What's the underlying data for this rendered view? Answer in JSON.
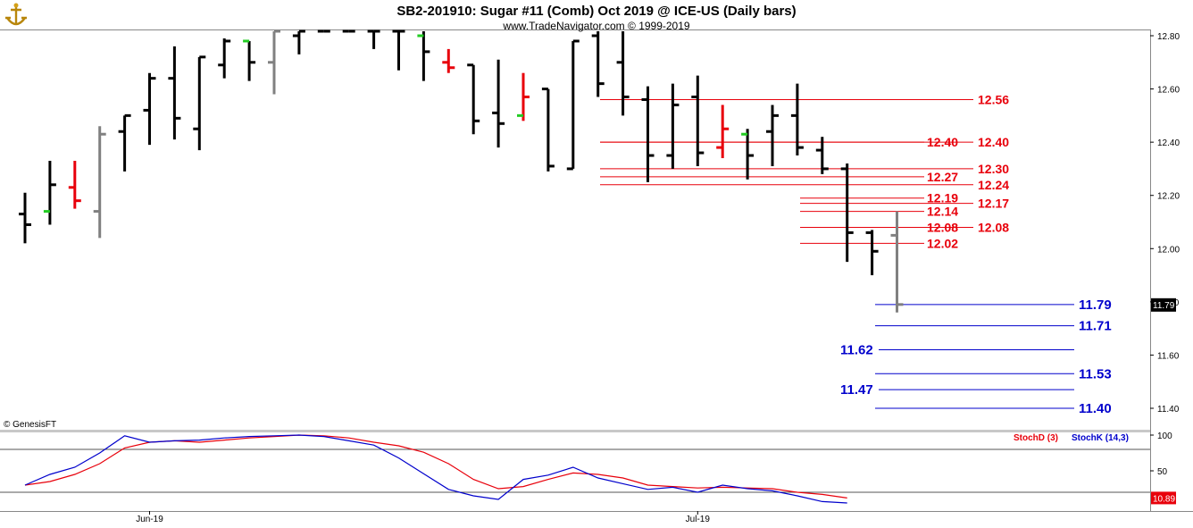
{
  "header": {
    "title": "SB2-201910:  Sugar #11 (Comb) Oct 2019 @ ICE-US  (Daily bars)",
    "subtitle": "www.TradeNavigator.com © 1999-2019",
    "copyright": "© GenesisFT",
    "logo_icon": "ship-anchor-icon"
  },
  "colors": {
    "up": "#000000",
    "down_red": "#e8000b",
    "neutral": "#808080",
    "open_marker": "#22cc22",
    "level_red": "#e8000b",
    "level_blue": "#0000cc",
    "stoch_d": "#e8000b",
    "stoch_k": "#0000cc"
  },
  "chart_data": [
    {
      "type": "ohlc",
      "title": "SB2-201910:  Sugar #11 (Comb) Oct 2019 @ ICE-US  (Daily bars)",
      "ylim": [
        11.35,
        12.82
      ],
      "y_ticks": [
        "12.80",
        "12.60",
        "12.40",
        "12.20",
        "12.00",
        "11.80",
        "11.60",
        "11.40"
      ],
      "y_tick_values": [
        12.8,
        12.6,
        12.4,
        12.2,
        12.0,
        11.8,
        11.6,
        11.4
      ],
      "x_labels": [
        {
          "index": 5,
          "label": "Jun-19"
        },
        {
          "index": 27,
          "label": "Jul-19"
        }
      ],
      "last_price": "11.79",
      "bars": [
        {
          "o": 12.13,
          "h": 12.21,
          "l": 12.02,
          "c": 12.09,
          "color": "black"
        },
        {
          "o": 12.14,
          "h": 12.33,
          "l": 12.09,
          "c": 12.24,
          "color": "black",
          "open_marker": true
        },
        {
          "o": 12.23,
          "h": 12.33,
          "l": 12.15,
          "c": 12.18,
          "color": "red"
        },
        {
          "o": 12.14,
          "h": 12.46,
          "l": 12.04,
          "c": 12.43,
          "color": "gray"
        },
        {
          "o": 12.44,
          "h": 12.5,
          "l": 12.29,
          "c": 12.5,
          "color": "black"
        },
        {
          "o": 12.52,
          "h": 12.66,
          "l": 12.39,
          "c": 12.64,
          "color": "black"
        },
        {
          "o": 12.64,
          "h": 12.76,
          "l": 12.41,
          "c": 12.49,
          "color": "black"
        },
        {
          "o": 12.45,
          "h": 12.72,
          "l": 12.37,
          "c": 12.72,
          "color": "black"
        },
        {
          "o": 12.69,
          "h": 12.79,
          "l": 12.64,
          "c": 12.78,
          "color": "black"
        },
        {
          "o": 12.78,
          "h": 12.78,
          "l": 12.63,
          "c": 12.7,
          "color": "black",
          "open_marker": true
        },
        {
          "o": 12.7,
          "h": 12.82,
          "l": 12.58,
          "c": 12.82,
          "color": "gray"
        },
        {
          "o": 12.8,
          "h": 12.82,
          "l": 12.73,
          "c": 12.82,
          "color": "black"
        },
        {
          "o": 12.82,
          "h": 12.82,
          "l": 12.82,
          "c": 12.82,
          "color": "black"
        },
        {
          "o": 12.82,
          "h": 12.82,
          "l": 12.82,
          "c": 12.82,
          "color": "black"
        },
        {
          "o": 12.82,
          "h": 12.82,
          "l": 12.75,
          "c": 12.82,
          "color": "black"
        },
        {
          "o": 12.82,
          "h": 12.82,
          "l": 12.67,
          "c": 12.82,
          "color": "black"
        },
        {
          "o": 12.8,
          "h": 12.82,
          "l": 12.63,
          "c": 12.74,
          "color": "black",
          "open_marker": true
        },
        {
          "o": 12.7,
          "h": 12.75,
          "l": 12.66,
          "c": 12.68,
          "color": "red"
        },
        {
          "o": 12.69,
          "h": 12.69,
          "l": 12.43,
          "c": 12.48,
          "color": "black"
        },
        {
          "o": 12.51,
          "h": 12.71,
          "l": 12.38,
          "c": 12.47,
          "color": "black"
        },
        {
          "o": 12.5,
          "h": 12.66,
          "l": 12.48,
          "c": 12.57,
          "color": "red",
          "open_marker": true
        },
        {
          "o": 12.6,
          "h": 12.6,
          "l": 12.29,
          "c": 12.31,
          "color": "black"
        },
        {
          "o": 12.3,
          "h": 12.78,
          "l": 12.3,
          "c": 12.78,
          "color": "black"
        },
        {
          "o": 12.8,
          "h": 12.82,
          "l": 12.57,
          "c": 12.62,
          "color": "black"
        },
        {
          "o": 12.7,
          "h": 12.82,
          "l": 12.5,
          "c": 12.57,
          "color": "black"
        },
        {
          "o": 12.56,
          "h": 12.61,
          "l": 12.25,
          "c": 12.35,
          "color": "black"
        },
        {
          "o": 12.35,
          "h": 12.62,
          "l": 12.3,
          "c": 12.54,
          "color": "black"
        },
        {
          "o": 12.57,
          "h": 12.65,
          "l": 12.31,
          "c": 12.36,
          "color": "black"
        },
        {
          "o": 12.38,
          "h": 12.54,
          "l": 12.34,
          "c": 12.45,
          "color": "red"
        },
        {
          "o": 12.43,
          "h": 12.45,
          "l": 12.26,
          "c": 12.35,
          "color": "black",
          "open_marker": true
        },
        {
          "o": 12.44,
          "h": 12.54,
          "l": 12.31,
          "c": 12.5,
          "color": "black"
        },
        {
          "o": 12.5,
          "h": 12.62,
          "l": 12.35,
          "c": 12.38,
          "color": "black"
        },
        {
          "o": 12.37,
          "h": 12.42,
          "l": 12.28,
          "c": 12.3,
          "color": "black"
        },
        {
          "o": 12.3,
          "h": 12.32,
          "l": 11.95,
          "c": 12.06,
          "color": "black"
        },
        {
          "o": 12.06,
          "h": 12.07,
          "l": 11.9,
          "c": 11.99,
          "color": "black"
        },
        {
          "o": 12.05,
          "h": 12.14,
          "l": 11.76,
          "c": 11.79,
          "color": "gray"
        }
      ]
    },
    {
      "type": "line",
      "title": "StochD (3)  StochK (14,3)",
      "ylim": [
        0,
        100
      ],
      "y_ticks": [
        "100",
        "50"
      ],
      "y_tick_values": [
        100,
        50
      ],
      "bands": [
        80,
        20
      ],
      "last_value": "10.89",
      "series": [
        {
          "name": "StochD (3)",
          "color": "#e8000b",
          "values": [
            30,
            35,
            45,
            60,
            82,
            90,
            92,
            90,
            93,
            96,
            98,
            100,
            99,
            96,
            90,
            85,
            76,
            60,
            38,
            25,
            28,
            38,
            47,
            45,
            40,
            30,
            28,
            26,
            27,
            26,
            25,
            20,
            17,
            12
          ]
        },
        {
          "name": "StochK (14,3)",
          "color": "#0000cc",
          "values": [
            30,
            45,
            55,
            75,
            99,
            90,
            92,
            93,
            96,
            98,
            99,
            100,
            98,
            92,
            86,
            68,
            46,
            24,
            15,
            10,
            38,
            44,
            55,
            40,
            32,
            24,
            27,
            20,
            30,
            25,
            22,
            15,
            7,
            5
          ]
        }
      ]
    }
  ],
  "levels_red": [
    {
      "value": 12.56,
      "label": "12.56",
      "side": "right"
    },
    {
      "value": 12.4,
      "label": "12.40",
      "side": "left"
    },
    {
      "value": 12.4,
      "label": "12.40",
      "side": "right"
    },
    {
      "value": 12.3,
      "label": "12.30",
      "side": "right"
    },
    {
      "value": 12.27,
      "label": "12.27",
      "side": "left"
    },
    {
      "value": 12.24,
      "label": "12.24",
      "side": "right"
    },
    {
      "value": 12.19,
      "label": "12.19",
      "side": "left"
    },
    {
      "value": 12.17,
      "label": "12.17",
      "side": "right"
    },
    {
      "value": 12.14,
      "label": "12.14",
      "side": "left"
    },
    {
      "value": 12.08,
      "label": "12.08",
      "side": "left"
    },
    {
      "value": 12.08,
      "label": "12.08",
      "side": "right"
    },
    {
      "value": 12.02,
      "label": "12.02",
      "side": "left"
    }
  ],
  "levels_blue": [
    {
      "value": 11.79,
      "label": "11.79",
      "side": "right"
    },
    {
      "value": 11.71,
      "label": "11.71",
      "side": "right"
    },
    {
      "value": 11.62,
      "label": "11.62",
      "side": "left"
    },
    {
      "value": 11.53,
      "label": "11.53",
      "side": "right"
    },
    {
      "value": 11.47,
      "label": "11.47",
      "side": "left"
    },
    {
      "value": 11.4,
      "label": "11.40",
      "side": "right"
    }
  ]
}
